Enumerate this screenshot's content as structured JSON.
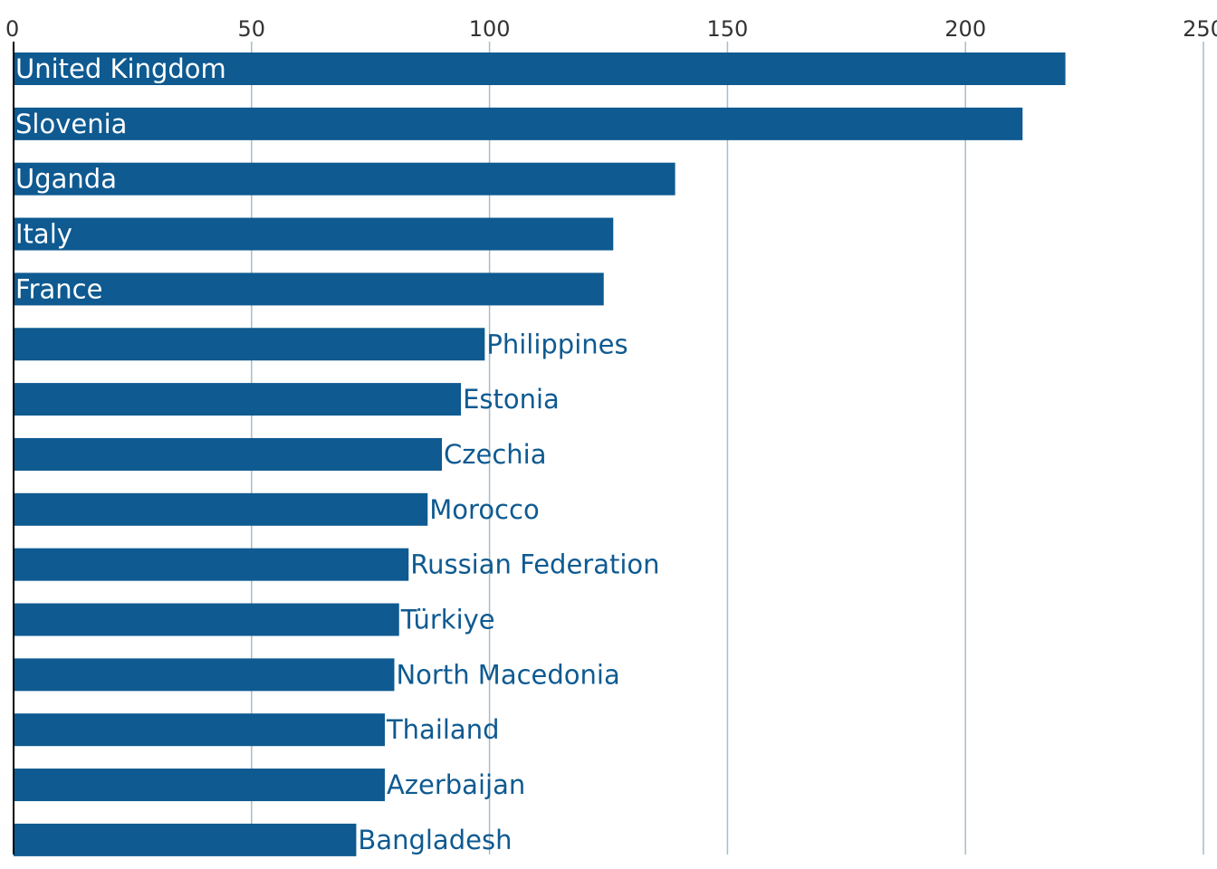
{
  "chart_data": {
    "type": "bar",
    "orientation": "horizontal",
    "title": "",
    "xlabel": "",
    "ylabel": "",
    "xlim": [
      0,
      250
    ],
    "x_ticks": [
      0,
      50,
      100,
      150,
      200,
      250
    ],
    "grid": true,
    "bar_color": "#0e5a91",
    "label_outside_color": "#0e5a91",
    "label_inside_color": "#ffffff",
    "categories": [
      "United Kingdom",
      "Slovenia",
      "Uganda",
      "Italy",
      "France",
      "Philippines",
      "Estonia",
      "Czechia",
      "Morocco",
      "Russian Federation",
      "Türkiye",
      "North Macedonia",
      "Thailand",
      "Azerbaijan",
      "Bangladesh"
    ],
    "values": [
      221,
      212,
      139,
      126,
      124,
      99,
      94,
      90,
      87,
      83,
      81,
      80,
      78,
      78,
      72
    ]
  }
}
